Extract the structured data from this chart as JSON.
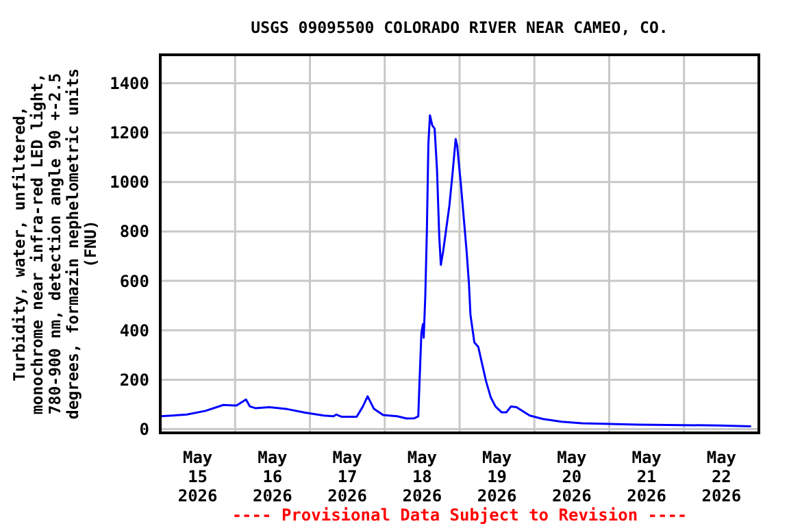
{
  "chart_data": {
    "type": "line",
    "title": "USGS 09095500 COLORADO RIVER NEAR CAMEO, CO.",
    "ylabel": "Turbidity, water, unfiltered,\nmonochrome near infra-red LED light,\n780-900 nm, detection angle 90 +-2.5\ndegrees, formazin nephelometric units\n(FNU)",
    "annotations": [
      "---- Provisional Data Subject to Revision ----"
    ],
    "x": [
      "2026-05-15T00:00",
      "2026-05-15T08:30",
      "2026-05-15T14:30",
      "2026-05-15T20:15",
      "2026-05-15T23:30",
      "2026-05-16T00:30",
      "2026-05-16T03:30",
      "2026-05-16T04:45",
      "2026-05-16T06:30",
      "2026-05-16T11:00",
      "2026-05-16T16:45",
      "2026-05-16T22:30",
      "2026-05-17T04:30",
      "2026-05-17T07:30",
      "2026-05-17T08:30",
      "2026-05-17T10:15",
      "2026-05-17T15:00",
      "2026-05-17T17:00",
      "2026-05-17T18:30",
      "2026-05-17T20:30",
      "2026-05-17T23:30",
      "2026-05-18T04:00",
      "2026-05-18T07:00",
      "2026-05-18T09:30",
      "2026-05-18T10:45",
      "2026-05-18T11:15",
      "2026-05-18T11:45",
      "2026-05-18T12:15",
      "2026-05-18T12:30",
      "2026-05-18T13:00",
      "2026-05-18T13:30",
      "2026-05-18T14:00",
      "2026-05-18T14:30",
      "2026-05-18T15:15",
      "2026-05-18T16:00",
      "2026-05-18T16:45",
      "2026-05-18T17:30",
      "2026-05-18T18:00",
      "2026-05-18T18:45",
      "2026-05-18T19:45",
      "2026-05-18T20:45",
      "2026-05-18T21:45",
      "2026-05-18T22:45",
      "2026-05-18T23:15",
      "2026-05-19T00:30",
      "2026-05-19T01:30",
      "2026-05-19T02:15",
      "2026-05-19T03:00",
      "2026-05-19T03:30",
      "2026-05-19T04:45",
      "2026-05-19T06:00",
      "2026-05-19T07:00",
      "2026-05-19T08:30",
      "2026-05-19T10:00",
      "2026-05-19T11:30",
      "2026-05-19T13:30",
      "2026-05-19T15:00",
      "2026-05-19T16:30",
      "2026-05-19T18:15",
      "2026-05-19T22:30",
      "2026-05-20T02:45",
      "2026-05-20T08:45",
      "2026-05-20T15:15",
      "2026-05-21T09:15",
      "2026-05-22T11:15",
      "2026-05-22T21:30"
    ],
    "series": [
      {
        "color": "#0000ff",
        "values": [
          52,
          59,
          74,
          98,
          96,
          96,
          120,
          92,
          85,
          89,
          81,
          67,
          55,
          52,
          59,
          50,
          50,
          92,
          133,
          83,
          57,
          52,
          43,
          44,
          52,
          222,
          388,
          425,
          370,
          536,
          795,
          1155,
          1270,
          1229,
          1216,
          1054,
          776,
          665,
          721,
          813,
          906,
          1035,
          1174,
          1146,
          980,
          832,
          721,
          591,
          462,
          351,
          333,
          277,
          194,
          129,
          92,
          68,
          68,
          92,
          89,
          55,
          41,
          30,
          24,
          18,
          15,
          11
        ]
      }
    ],
    "xlim": [
      "2026-05-15T00:00",
      "2026-05-23T00:00"
    ],
    "xticks": [
      {
        "value": "2026-05-15T12:00",
        "label": "May\n15\n2026"
      },
      {
        "value": "2026-05-16T00:00",
        "label": null
      },
      {
        "value": "2026-05-16T12:00",
        "label": "May\n16\n2026"
      },
      {
        "value": "2026-05-17T00:00",
        "label": null
      },
      {
        "value": "2026-05-17T12:00",
        "label": "May\n17\n2026"
      },
      {
        "value": "2026-05-18T00:00",
        "label": null
      },
      {
        "value": "2026-05-18T12:00",
        "label": "May\n18\n2026"
      },
      {
        "value": "2026-05-19T00:00",
        "label": null
      },
      {
        "value": "2026-05-19T12:00",
        "label": "May\n19\n2026"
      },
      {
        "value": "2026-05-20T00:00",
        "label": null
      },
      {
        "value": "2026-05-20T12:00",
        "label": "May\n20\n2026"
      },
      {
        "value": "2026-05-21T00:00",
        "label": null
      },
      {
        "value": "2026-05-21T12:00",
        "label": "May\n21\n2026"
      },
      {
        "value": "2026-05-22T00:00",
        "label": null
      },
      {
        "value": "2026-05-22T12:00",
        "label": "May\n22\n2026"
      }
    ],
    "ylim": [
      -15,
      1515
    ],
    "yticks": [
      0,
      200,
      400,
      600,
      800,
      1000,
      1200,
      1400
    ],
    "grid": true,
    "line_style": "solid"
  }
}
